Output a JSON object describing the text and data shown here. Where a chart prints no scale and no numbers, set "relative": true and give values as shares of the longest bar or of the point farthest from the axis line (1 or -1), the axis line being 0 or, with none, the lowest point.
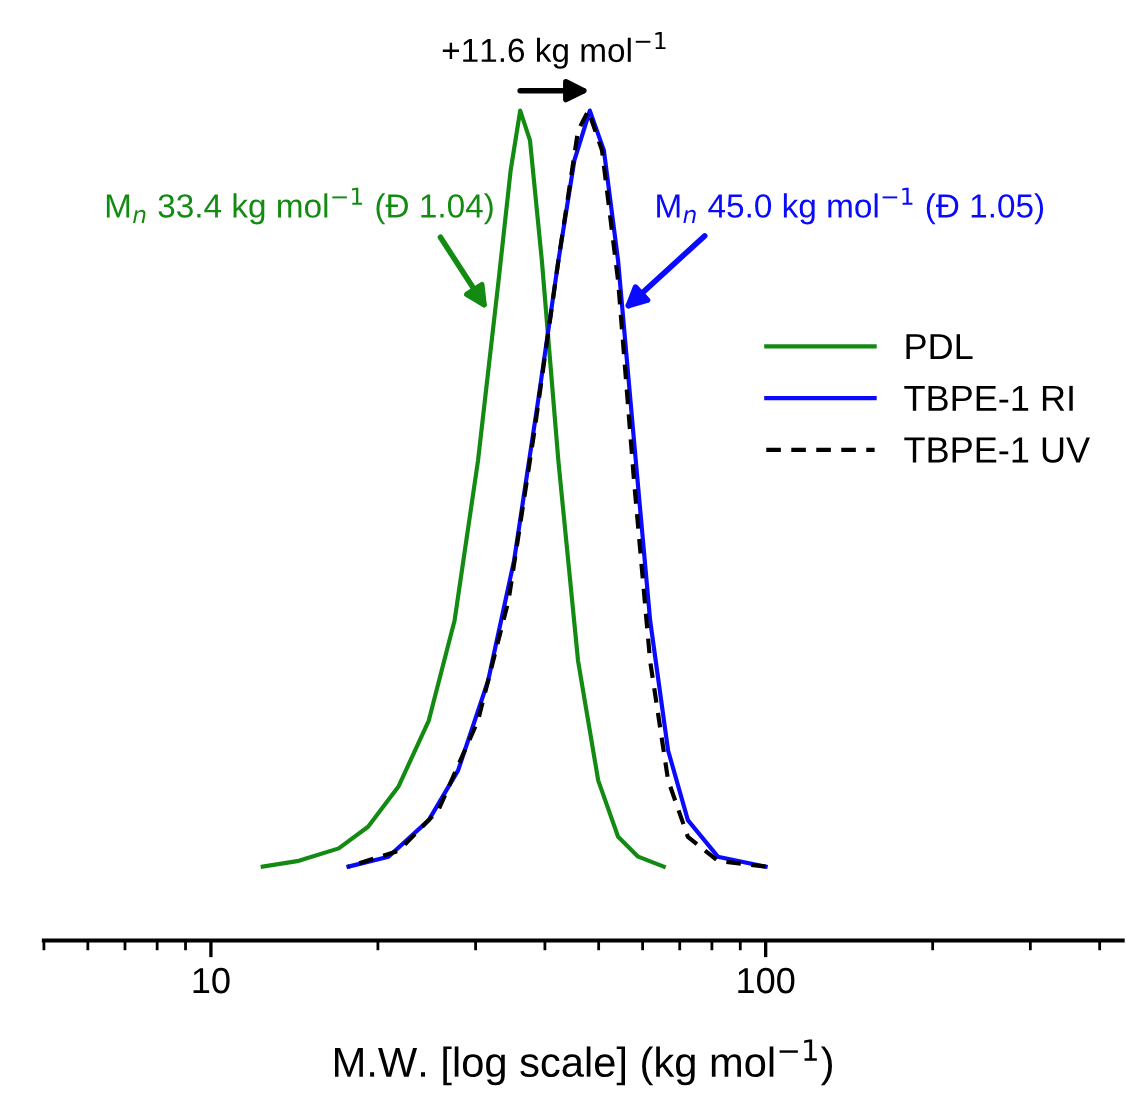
{
  "chart_data": {
    "type": "line",
    "relative": true,
    "log": "x",
    "xlabel": "M.W. [log scale] (kg mol$^{−1}$)",
    "xlim": [
      5,
      440
    ],
    "xticks": [
      10,
      100
    ],
    "grid": false,
    "legend": "right",
    "tick_labels": "x",
    "series": [
      {
        "name": "PDL",
        "color": "#138b13",
        "line_style": "solid",
        "x": [
          12.4,
          14.4,
          17.0,
          19.2,
          21.8,
          24.7,
          27.5,
          30.3,
          33.0,
          34.7,
          36.1,
          37.6,
          39.5,
          42.3,
          45.9,
          49.9,
          54.2,
          58.9,
          65.5
        ],
        "values": [
          0.089,
          0.096,
          0.111,
          0.137,
          0.186,
          0.265,
          0.386,
          0.578,
          0.795,
          0.928,
          1.0,
          0.964,
          0.819,
          0.578,
          0.337,
          0.193,
          0.125,
          0.101,
          0.089
        ]
      },
      {
        "name": "TBPE-1 RI",
        "color": "#0a0aff",
        "line_style": "solid",
        "x": [
          17.7,
          20.9,
          24.7,
          27.9,
          31.6,
          35.2,
          38.9,
          42.3,
          45.2,
          48.2,
          51.1,
          54.2,
          57.9,
          61.9,
          66.7,
          72.4,
          82.0,
          100
        ],
        "values": [
          0.089,
          0.101,
          0.145,
          0.205,
          0.313,
          0.458,
          0.651,
          0.819,
          0.94,
          1.0,
          0.952,
          0.819,
          0.602,
          0.386,
          0.229,
          0.145,
          0.101,
          0.089
        ]
      },
      {
        "name": "TBPE-1 UV",
        "color": "#000000",
        "line_style": "dashed",
        "x": [
          17.7,
          21.8,
          25.7,
          30.3,
          34.4,
          38.3,
          42.3,
          45.9,
          47.9,
          50.7,
          54.2,
          57.9,
          61.9,
          66.7,
          72.4,
          82.0,
          100
        ],
        "values": [
          0.089,
          0.108,
          0.157,
          0.265,
          0.41,
          0.614,
          0.819,
          0.976,
          1.0,
          0.952,
          0.795,
          0.554,
          0.337,
          0.193,
          0.125,
          0.096,
          0.089
        ]
      }
    ],
    "annotations": [
      "+11.6 kg mol$^{−1}$",
      {
        "text": "M$_{n}$ 33.4 kg mol$^{−1}$ (Đ 1.04)",
        "x": 31.5,
        "y": 0.76
      },
      {
        "text": "M$_{n}$ 45.0 kg mol$^{−1}$ (Đ 1.05)",
        "x": 55.5,
        "y": 0.76
      }
    ]
  }
}
